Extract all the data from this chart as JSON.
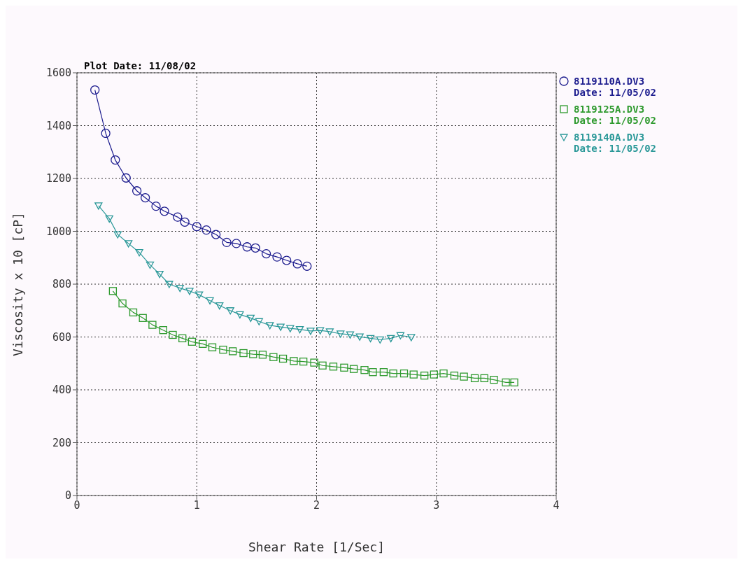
{
  "chart_data": {
    "type": "line",
    "subtitle": "Plot Date: 11/08/02",
    "xlabel": "Shear Rate [1/Sec]",
    "ylabel": "Viscosity x 10 [cP]",
    "xlim": [
      0,
      4
    ],
    "xticks": [
      0,
      1,
      2,
      3,
      4
    ],
    "ylim": [
      0,
      1600
    ],
    "yticks": [
      0,
      200,
      400,
      600,
      800,
      1000,
      1200,
      1400,
      1600
    ],
    "grid": true,
    "legend": "right",
    "line_style": "solid",
    "series": [
      {
        "name": "8119110A.DV3\nDate: 11/05/02",
        "color": "#1c1c8e",
        "marker": "circle",
        "x": [
          0.15,
          0.24,
          0.32,
          0.41,
          0.5,
          0.57,
          0.66,
          0.73,
          0.84,
          0.9,
          1.0,
          1.08,
          1.16,
          1.25,
          1.33,
          1.42,
          1.49,
          1.58,
          1.67,
          1.75,
          1.84,
          1.92
        ],
        "values": [
          1535,
          1371,
          1270,
          1202,
          1153,
          1127,
          1095,
          1076,
          1054,
          1035,
          1018,
          1005,
          988,
          958,
          954,
          941,
          937,
          915,
          903,
          890,
          877,
          868
        ]
      },
      {
        "name": "8119125A.DV3\nDate: 11/05/02",
        "color": "#2e9a2e",
        "marker": "square",
        "x": [
          0.3,
          0.38,
          0.47,
          0.55,
          0.63,
          0.72,
          0.8,
          0.88,
          0.96,
          1.05,
          1.13,
          1.22,
          1.3,
          1.39,
          1.47,
          1.55,
          1.64,
          1.72,
          1.81,
          1.89,
          1.98,
          2.05,
          2.14,
          2.23,
          2.31,
          2.4,
          2.47,
          2.56,
          2.64,
          2.73,
          2.81,
          2.9,
          2.98,
          3.06,
          3.15,
          3.23,
          3.32,
          3.4,
          3.48,
          3.58,
          3.65
        ],
        "values": [
          774,
          727,
          693,
          672,
          646,
          626,
          608,
          595,
          582,
          574,
          561,
          552,
          546,
          539,
          535,
          533,
          524,
          518,
          509,
          507,
          503,
          492,
          488,
          484,
          479,
          475,
          467,
          467,
          462,
          462,
          458,
          454,
          458,
          462,
          454,
          450,
          444,
          444,
          438,
          428,
          428
        ]
      },
      {
        "name": "8119140A.DV3\nDate: 11/05/02",
        "color": "#2a9898",
        "marker": "triangle",
        "x": [
          0.18,
          0.27,
          0.34,
          0.43,
          0.52,
          0.61,
          0.69,
          0.77,
          0.86,
          0.94,
          1.02,
          1.11,
          1.19,
          1.28,
          1.36,
          1.45,
          1.52,
          1.61,
          1.7,
          1.78,
          1.86,
          1.95,
          2.03,
          2.11,
          2.2,
          2.28,
          2.36,
          2.45,
          2.53,
          2.62,
          2.7,
          2.79
        ],
        "values": [
          1097,
          1048,
          988,
          954,
          920,
          873,
          838,
          800,
          785,
          774,
          760,
          738,
          719,
          700,
          685,
          672,
          659,
          644,
          638,
          633,
          629,
          623,
          625,
          620,
          612,
          609,
          601,
          595,
          590,
          595,
          606,
          599
        ]
      }
    ]
  }
}
